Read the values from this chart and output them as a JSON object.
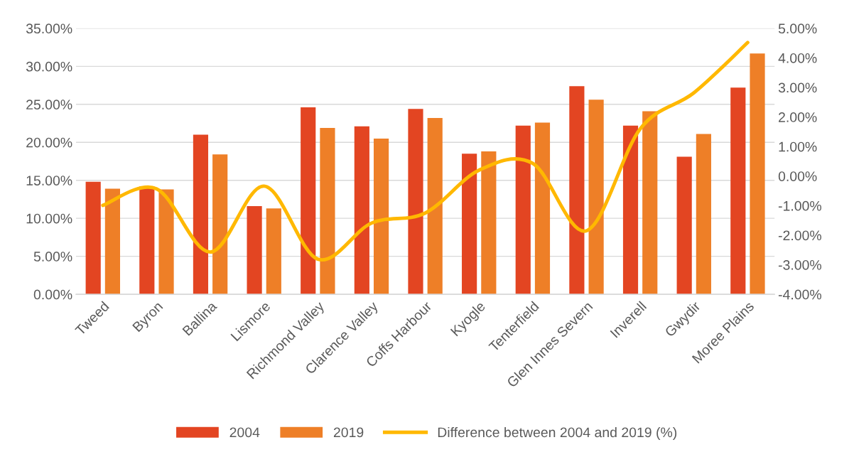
{
  "chart_data": {
    "type": "bar",
    "categories": [
      "Tweed",
      "Byron",
      "Ballina",
      "Lismore",
      "Richmond Valley",
      "Clarence Valley",
      "Coffs Harbour",
      "Kyogle",
      "Tenterfield",
      "Glen Innes Severn",
      "Inverell",
      "Gwydir",
      "Moree Plains"
    ],
    "series": [
      {
        "name": "2004",
        "color": "#e34522",
        "values": [
          14.8,
          14.2,
          21.0,
          11.6,
          24.6,
          22.1,
          24.4,
          18.5,
          22.2,
          27.4,
          22.2,
          18.1,
          27.2
        ]
      },
      {
        "name": "2019",
        "color": "#ee7f27",
        "values": [
          13.9,
          13.8,
          18.4,
          11.3,
          21.9,
          20.5,
          23.2,
          18.8,
          22.6,
          25.6,
          24.1,
          21.1,
          31.7
        ]
      },
      {
        "name": "Difference between 2004 and 2019 (%)",
        "type": "line",
        "axis": "y2",
        "color": "#ffb800",
        "values": [
          -0.99,
          -0.43,
          -2.57,
          -0.34,
          -2.81,
          -1.59,
          -1.25,
          0.2,
          0.43,
          -1.85,
          1.6,
          2.82,
          4.52
        ]
      }
    ],
    "ylim": [
      0,
      35
    ],
    "yticks": [
      {
        "value": 0,
        "label": "0.00%"
      },
      {
        "value": 5,
        "label": "5.00%"
      },
      {
        "value": 10,
        "label": "10.00%"
      },
      {
        "value": 15,
        "label": "15.00%"
      },
      {
        "value": 20,
        "label": "20.00%"
      },
      {
        "value": 25,
        "label": "25.00%"
      },
      {
        "value": 30,
        "label": "30.00%"
      },
      {
        "value": 35,
        "label": "35.00%"
      }
    ],
    "y2lim": [
      -4,
      5
    ],
    "y2ticks": [
      {
        "value": -4,
        "label": "-4.00%"
      },
      {
        "value": -3,
        "label": "-3.00%"
      },
      {
        "value": -2,
        "label": "-2.00%"
      },
      {
        "value": -1,
        "label": "-1.00%"
      },
      {
        "value": 0,
        "label": "0.00%"
      },
      {
        "value": 1,
        "label": "1.00%"
      },
      {
        "value": 2,
        "label": "2.00%"
      },
      {
        "value": 3,
        "label": "3.00%"
      },
      {
        "value": 4,
        "label": "4.00%"
      },
      {
        "value": 5,
        "label": "5.00%"
      }
    ],
    "grid": "y",
    "legend": "bottom"
  }
}
